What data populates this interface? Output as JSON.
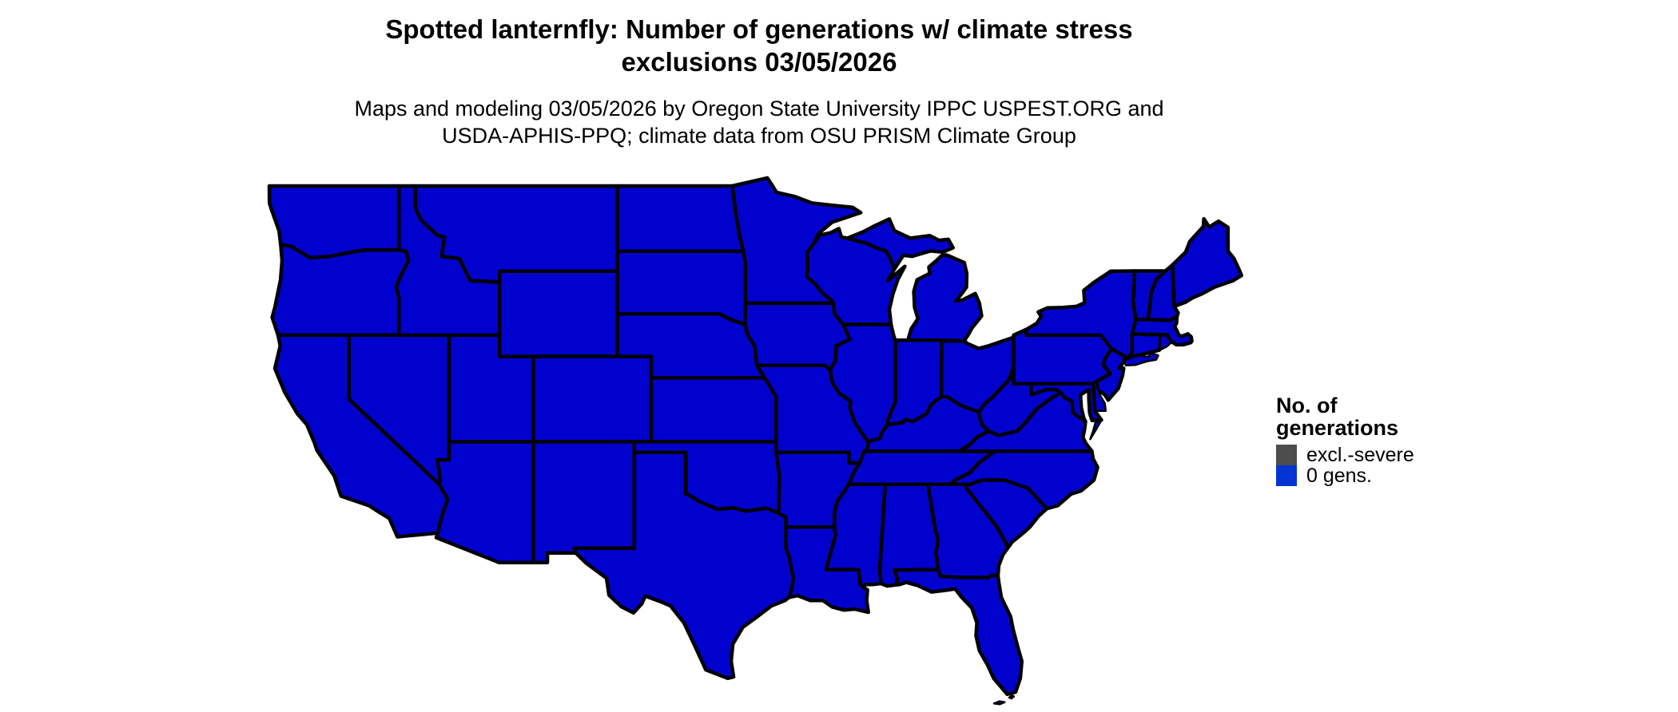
{
  "title": {
    "lines": [
      "Spotted lanternfly: Number of generations w/ climate stress",
      "exclusions 03/05/2026"
    ]
  },
  "subtitle": {
    "lines": [
      "Maps and modeling 03/05/2026 by Oregon State University IPPC USPEST.ORG and",
      "USDA-APHIS-PPQ; climate data from OSU PRISM Climate Group"
    ]
  },
  "legend": {
    "title_lines": [
      "No. of",
      "generations"
    ],
    "items": [
      {
        "label": "excl.-severe",
        "color": "#4D4D4D"
      },
      {
        "label": "0 gens.",
        "color": "#0435D2"
      }
    ]
  },
  "map": {
    "region": "Contiguous United States (lower 48 states)",
    "fill_color": "#0101CE",
    "border_color": "#000000",
    "background_color": "#FFFFFF",
    "all_states_value": "0 gens.",
    "states": [
      "Washington",
      "Oregon",
      "California",
      "Nevada",
      "Arizona",
      "Utah",
      "Idaho",
      "Montana",
      "Wyoming",
      "Colorado",
      "New Mexico",
      "North Dakota",
      "South Dakota",
      "Nebraska",
      "Kansas",
      "Oklahoma",
      "Texas",
      "Minnesota",
      "Iowa",
      "Missouri",
      "Arkansas",
      "Louisiana",
      "Mississippi",
      "Alabama",
      "Georgia",
      "Florida",
      "Wisconsin",
      "Illinois",
      "Indiana",
      "Ohio",
      "Michigan",
      "Kentucky",
      "Tennessee",
      "Virginia",
      "West Virginia",
      "Pennsylvania",
      "New York",
      "New Jersey",
      "Delaware",
      "Maryland",
      "Connecticut",
      "Rhode Island",
      "Massachusetts",
      "Vermont",
      "New Hampshire",
      "Maine",
      "North Carolina",
      "South Carolina"
    ]
  }
}
